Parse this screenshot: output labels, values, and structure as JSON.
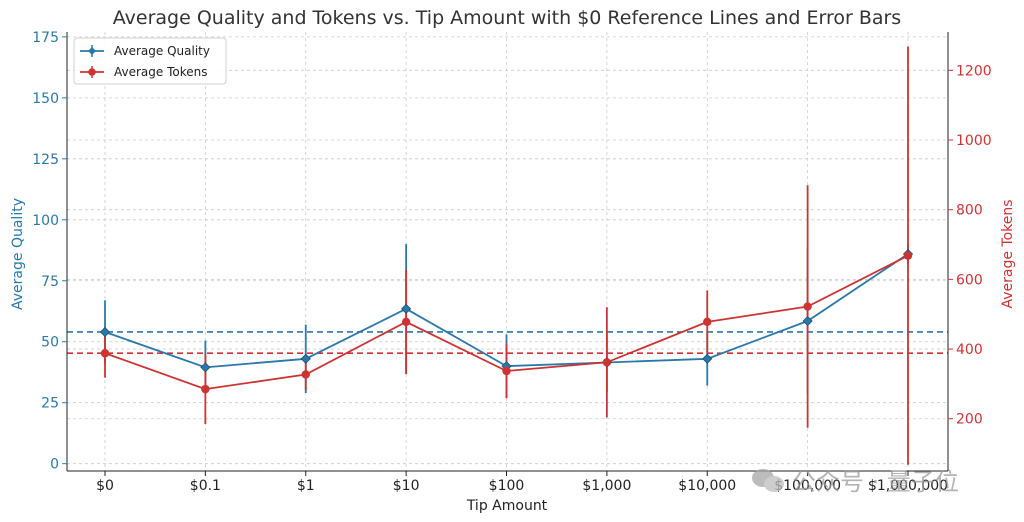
{
  "chart_data": {
    "type": "line",
    "title": "Average Quality and Tokens vs. Tip Amount with $0 Reference Lines and Error Bars",
    "xlabel": "Tip Amount",
    "ylabel_left": "Average Quality",
    "ylabel_right": "Average Tokens",
    "categories": [
      "$0",
      "$0.1",
      "$1",
      "$10",
      "$100",
      "$1,000",
      "$10,000",
      "$100,000",
      "$1,000,000"
    ],
    "ylim_left": [
      -3,
      177
    ],
    "ylim_right": [
      50,
      1310
    ],
    "yticks_left": [
      0,
      25,
      50,
      75,
      100,
      125,
      150,
      175
    ],
    "yticks_right": [
      200,
      400,
      600,
      800,
      1000,
      1200
    ],
    "grid": true,
    "legend_position": "top-left",
    "series": [
      {
        "name": "Average Quality",
        "axis": "left",
        "color": "#2b78a8",
        "marker": "diamond",
        "values": [
          54,
          39.5,
          43,
          63.5,
          40,
          41.5,
          43,
          58.5,
          86
        ],
        "error": [
          13,
          11,
          14,
          26.5,
          13,
          12,
          11,
          30,
          4
        ]
      },
      {
        "name": "Average Tokens",
        "axis": "right",
        "color": "#cc3333",
        "marker": "circle",
        "values": [
          388,
          285,
          327,
          478,
          337,
          362,
          478,
          522,
          668
        ],
        "error": [
          70,
          100,
          45,
          150,
          78,
          158,
          90,
          348,
          600
        ]
      }
    ],
    "reference_lines": [
      {
        "axis": "left",
        "value": 54,
        "color": "#2b78a8",
        "style": "dashed"
      },
      {
        "axis": "right",
        "value": 388,
        "color": "#cc3333",
        "style": "dashed"
      }
    ]
  },
  "watermark": {
    "text": "公众号 · 量子位",
    "icon": "wechat-icon"
  }
}
